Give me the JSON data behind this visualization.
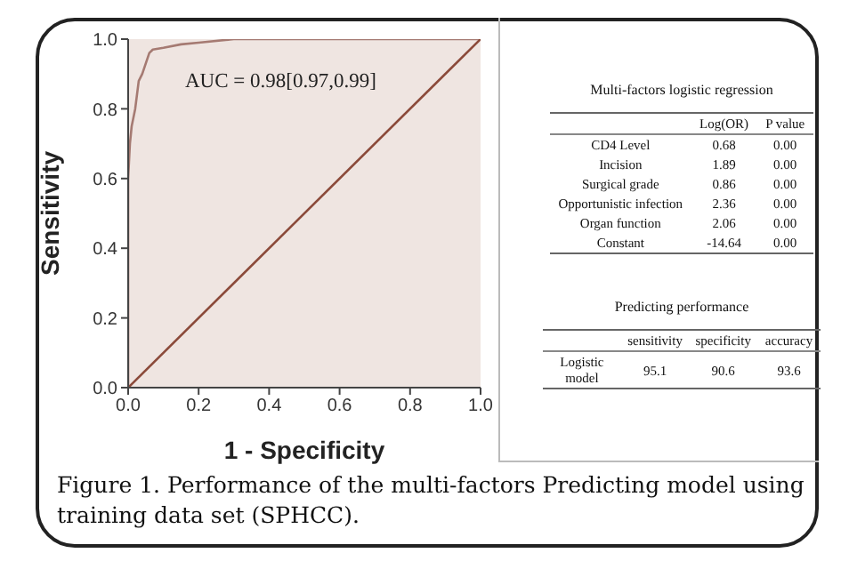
{
  "chart_data": [
    {
      "type": "line",
      "xlabel": "1 - Specificity",
      "ylabel": "Sensitivity",
      "annotations": [
        "AUC = 0.98[0.97,0.99]",
        "Figure 1. Performance of the multi-factors Predicting model using training data set (SPHCC)."
      ],
      "series": [
        {
          "color": "#a57a72",
          "x": [
            0,
            0,
            0.005,
            0.01,
            0.02,
            0.03,
            0.04,
            0.06,
            0.07,
            0.1,
            0.15,
            0.2,
            0.3,
            0.6,
            1
          ],
          "values": [
            0,
            0.6,
            0.7,
            0.75,
            0.8,
            0.88,
            0.9,
            0.96,
            0.97,
            0.975,
            0.985,
            0.99,
            1,
            1,
            1
          ]
        },
        {
          "color": "#8b4a3a",
          "x": [
            0,
            1
          ],
          "values": [
            0,
            1
          ]
        }
      ],
      "xlim": [
        0,
        1
      ],
      "ylim": [
        0,
        1
      ],
      "xticks": [
        {
          "value": 0,
          "label": "0.0"
        },
        {
          "value": 0.2,
          "label": "0.2"
        },
        {
          "value": 0.4,
          "label": "0.4"
        },
        {
          "value": 0.6,
          "label": "0.6"
        },
        {
          "value": 0.8,
          "label": "0.8"
        },
        {
          "value": 1,
          "label": "1.0"
        }
      ],
      "yticks": [
        {
          "value": 0,
          "label": "0.0"
        },
        {
          "value": 0.2,
          "label": "0.2"
        },
        {
          "value": 0.4,
          "label": "0.4"
        },
        {
          "value": 0.6,
          "label": "0.6"
        },
        {
          "value": 0.8,
          "label": "0.8"
        },
        {
          "value": 1,
          "label": "1.0"
        }
      ],
      "marker": "none",
      "line_style": "solid",
      "grid": false,
      "legend": false
    },
    {
      "type": "other",
      "title": "Multi-factors logistic regression",
      "categories": [
        "Log(OR)",
        "P value"
      ],
      "y_categories": [
        "CD4 Level",
        "Incision",
        "Surgical grade",
        "Opportunistic infection",
        "Organ function",
        "Constant"
      ],
      "cell_labels": [
        [
          "0.68",
          "0.00"
        ],
        [
          "1.89",
          "0.00"
        ],
        [
          "0.86",
          "0.00"
        ],
        [
          "2.36",
          "0.00"
        ],
        [
          "2.06",
          "0.00"
        ],
        [
          "-14.64",
          "0.00"
        ]
      ]
    },
    {
      "type": "other",
      "title": "Predicting performance",
      "categories": [
        "sensitivity",
        "specificity",
        "accuracy"
      ],
      "y_categories": [
        "Logistic model"
      ],
      "cell_labels": [
        [
          "95.1",
          "90.6",
          "93.6"
        ]
      ]
    }
  ]
}
